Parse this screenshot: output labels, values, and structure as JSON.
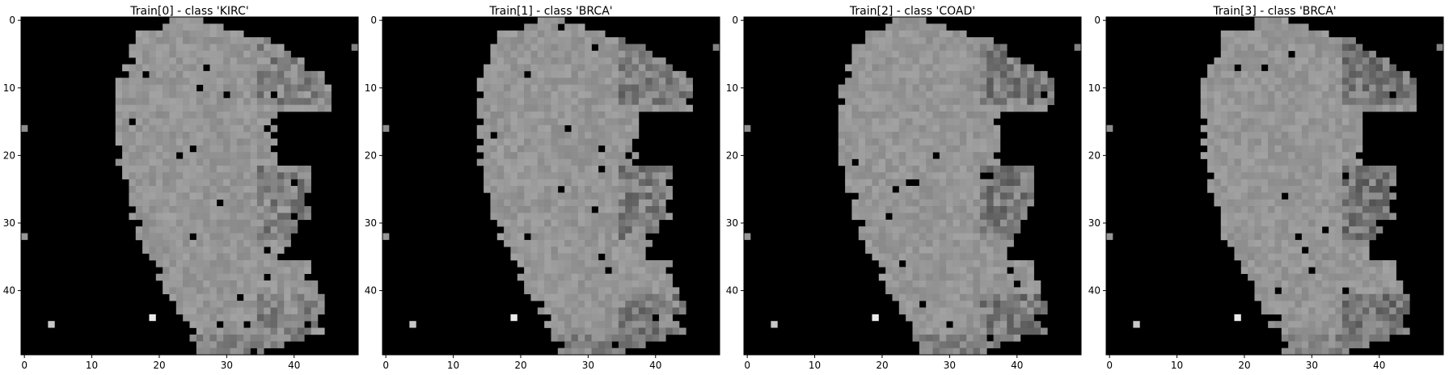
{
  "chart_data": [
    {
      "type": "heatmap",
      "title": "Train[0] - class 'KIRC'",
      "xlim": [
        -0.5,
        49.5
      ],
      "ylim": [
        49.5,
        -0.5
      ],
      "xticks": [
        0,
        10,
        20,
        30,
        40
      ],
      "yticks": [
        0,
        10,
        20,
        30,
        40
      ],
      "xlabel": "",
      "ylabel": "",
      "colormap": "gray",
      "grid": false,
      "variant": 0
    },
    {
      "type": "heatmap",
      "title": "Train[1] - class 'BRCA'",
      "xlim": [
        -0.5,
        49.5
      ],
      "ylim": [
        49.5,
        -0.5
      ],
      "xticks": [
        0,
        10,
        20,
        30,
        40
      ],
      "yticks": [
        0,
        10,
        20,
        30,
        40
      ],
      "xlabel": "",
      "ylabel": "",
      "colormap": "gray",
      "grid": false,
      "variant": 1
    },
    {
      "type": "heatmap",
      "title": "Train[2] - class 'COAD'",
      "xlim": [
        -0.5,
        49.5
      ],
      "ylim": [
        49.5,
        -0.5
      ],
      "xticks": [
        0,
        10,
        20,
        30,
        40
      ],
      "yticks": [
        0,
        10,
        20,
        30,
        40
      ],
      "xlabel": "",
      "ylabel": "",
      "colormap": "gray",
      "grid": false,
      "variant": 2
    },
    {
      "type": "heatmap",
      "title": "Train[3] - class 'BRCA'",
      "xlim": [
        -0.5,
        49.5
      ],
      "ylim": [
        49.5,
        -0.5
      ],
      "xticks": [
        0,
        10,
        20,
        30,
        40
      ],
      "yticks": [
        0,
        10,
        20,
        30,
        40
      ],
      "xlabel": "",
      "ylabel": "",
      "colormap": "gray",
      "grid": false,
      "variant": 3
    }
  ],
  "colors": {
    "background": "#000000",
    "tissue": "#a0a0a0",
    "axes": "#000000"
  }
}
